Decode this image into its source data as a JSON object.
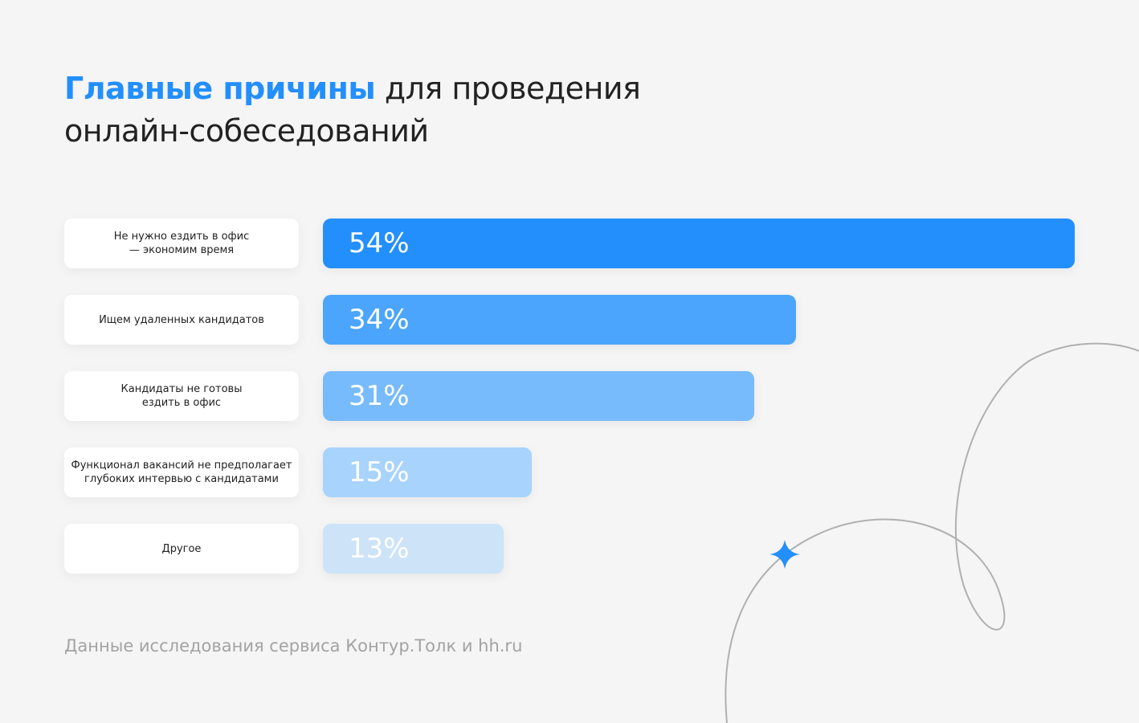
{
  "chart_data": {
    "type": "bar",
    "title_highlight": "Главные причины",
    "title_rest": "для проведения\nонлайн-собеседований",
    "categories": [
      "Не нужно ездить в офис\n— экономим время",
      "Ищем удаленных кандидатов",
      "Кандидаты не готовы\nездить в офис",
      "Функционал вакансий не предполагает\nглубоких интервью с кандидатами",
      "Другое"
    ],
    "values": [
      54,
      34,
      31,
      15,
      13
    ],
    "value_labels": [
      "54%",
      "34%",
      "31%",
      "15%",
      "13%"
    ],
    "colors": [
      "#238ffc",
      "#4ba5fc",
      "#78bbfc",
      "#a8d3fc",
      "#cde3f8"
    ],
    "title_color": "#238ffc",
    "source": "Данные исследования сервиса Контур.Толк и hh.ru"
  }
}
